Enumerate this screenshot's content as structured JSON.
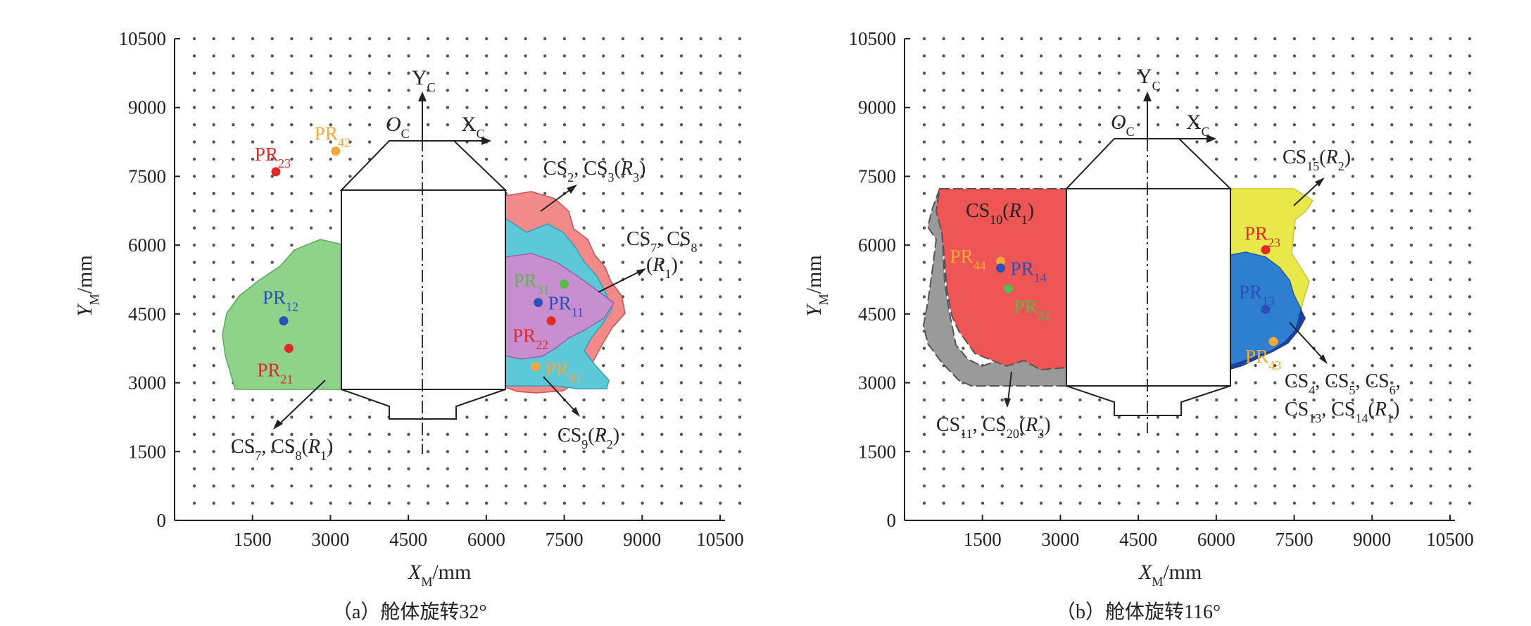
{
  "figure": {
    "panels": [
      {
        "caption": "（a）舱体旋转32°",
        "x_ticks": [
          "1500",
          "3000",
          "4500",
          "6000",
          "7500",
          "9000",
          "10500"
        ],
        "y_ticks": [
          "0",
          "1500",
          "3000",
          "4500",
          "6000",
          "7500",
          "9000",
          "10500"
        ],
        "x_axis_label": "X",
        "x_axis_sub": "M",
        "x_axis_unit": "/mm",
        "y_axis_label": "Y",
        "y_axis_sub": "M",
        "y_axis_unit": "/mm",
        "cabin_axes": {
          "x": "X",
          "y": "Y",
          "origin": "O",
          "sub": "C"
        },
        "points": [
          {
            "name": "PR",
            "sub": "23",
            "color": "#e02a2a",
            "x": 1950,
            "y": 7600
          },
          {
            "name": "PR",
            "sub": "42",
            "color": "#f2a83a",
            "x": 3100,
            "y": 8050
          },
          {
            "name": "PR",
            "sub": "12",
            "color": "#2c4fb8",
            "x": 2100,
            "y": 4350
          },
          {
            "name": "PR",
            "sub": "21",
            "color": "#e02a2a",
            "x": 2200,
            "y": 3750
          },
          {
            "name": "PR",
            "sub": "31",
            "color": "#5bb84a",
            "x": 7500,
            "y": 5150
          },
          {
            "name": "PR",
            "sub": "11",
            "color": "#2c4fb8",
            "x": 7000,
            "y": 4750
          },
          {
            "name": "PR",
            "sub": "22",
            "color": "#e02a2a",
            "x": 7250,
            "y": 4350
          },
          {
            "name": "PR",
            "sub": "41",
            "color": "#f2a83a",
            "x": 6950,
            "y": 3350
          }
        ],
        "regions": [
          {
            "label": "CS",
            "sub": "7",
            "label_b": "CS",
            "sub_b": "8",
            "r": "R",
            "r_sub": "1",
            "color": "#8fd28a"
          },
          {
            "label": "CS",
            "sub": "2",
            "label_b": "CS",
            "sub_b": "3",
            "r": "R",
            "r_sub": "3",
            "color": "#f28a8a"
          },
          {
            "label": "CS",
            "sub": "7",
            "label_b": "CS",
            "sub_b": "8",
            "r": "R",
            "r_sub": "1",
            "color": "#c78fd0"
          },
          {
            "label": "CS",
            "sub": "9",
            "r": "R",
            "r_sub": "2",
            "color": "#5cc8d8"
          }
        ]
      },
      {
        "caption": "（b）舱体旋转116°",
        "x_ticks": [
          "1500",
          "3000",
          "4500",
          "6000",
          "7500",
          "9000",
          "10500"
        ],
        "y_ticks": [
          "0",
          "1500",
          "3000",
          "4500",
          "6000",
          "7500",
          "9000",
          "10500"
        ],
        "x_axis_label": "X",
        "x_axis_sub": "M",
        "x_axis_unit": "/mm",
        "y_axis_label": "Y",
        "y_axis_sub": "M",
        "y_axis_unit": "/mm",
        "cabin_axes": {
          "x": "X",
          "y": "Y",
          "origin": "O",
          "sub": "C"
        },
        "points": [
          {
            "name": "PR",
            "sub": "44",
            "color": "#f2a83a",
            "x": 1850,
            "y": 5650
          },
          {
            "name": "PR",
            "sub": "14",
            "color": "#2c4fb8",
            "x": 1850,
            "y": 5500
          },
          {
            "name": "PR",
            "sub": "32",
            "color": "#5bb84a",
            "x": 2000,
            "y": 5050
          },
          {
            "name": "PR",
            "sub": "23",
            "color": "#e02a2a",
            "x": 6950,
            "y": 5900
          },
          {
            "name": "PR",
            "sub": "13",
            "color": "#2c4fb8",
            "x": 6950,
            "y": 4600
          },
          {
            "name": "PR",
            "sub": "43",
            "color": "#f2a83a",
            "x": 7100,
            "y": 3900
          }
        ],
        "regions": [
          {
            "label": "CS",
            "sub": "10",
            "r": "R",
            "r_sub": "1",
            "color": "#ee5555"
          },
          {
            "label": "CS",
            "sub": "11",
            "label_b": "CS",
            "sub_b": "20",
            "r": "R",
            "r_sub": "3",
            "color": "#9a9a9a"
          },
          {
            "label": "CS",
            "sub": "15",
            "r": "R",
            "r_sub": "2",
            "color": "#e8e84a"
          },
          {
            "label": "CS",
            "sub": "4",
            "label_b": "CS",
            "sub_b": "5",
            "label_c": "CS",
            "sub_c": "6",
            "label_d": "CS",
            "sub_d": "13",
            "label_e": "CS",
            "sub_e": "14",
            "r": "R",
            "r_sub": "1",
            "color": "#2f7fd0"
          }
        ]
      }
    ]
  }
}
